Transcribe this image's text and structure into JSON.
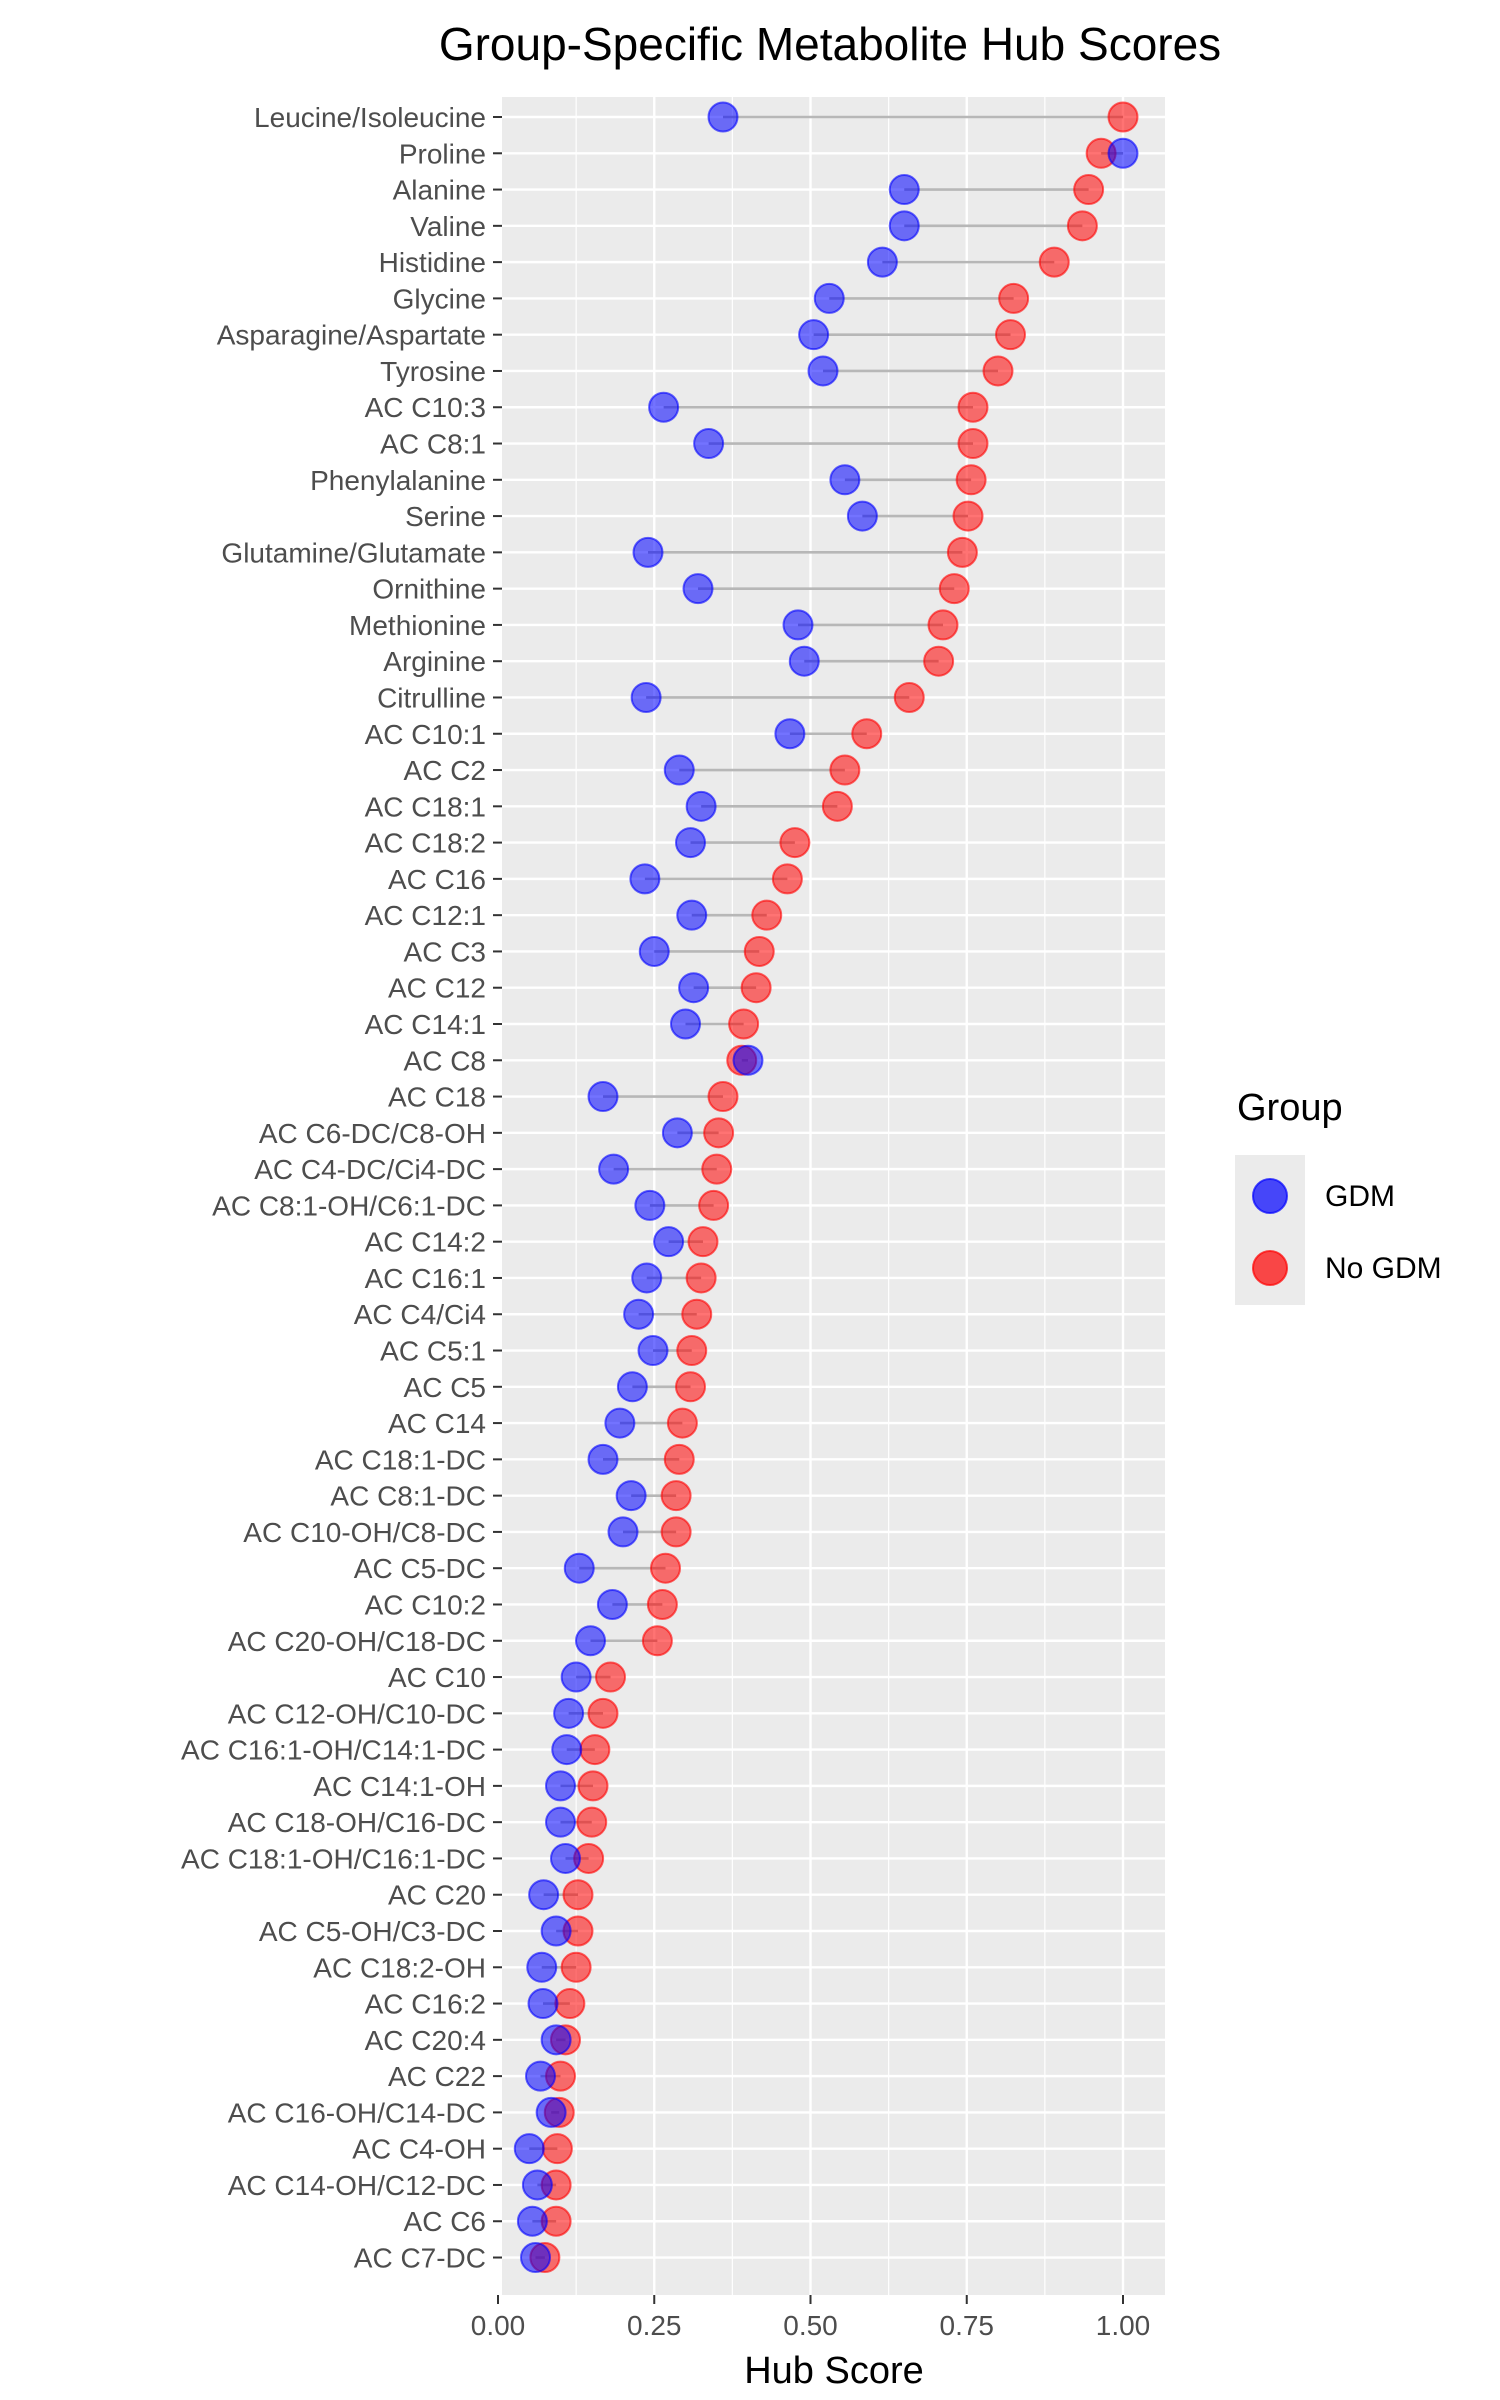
{
  "chart_data": {
    "type": "dot-dumbbell",
    "title": "Group-Specific Metabolite Hub Scores",
    "xlabel": "Hub Score",
    "ylabel": "",
    "xlim": [
      0,
      1.04
    ],
    "xticks": [
      0.0,
      0.25,
      0.5,
      0.75,
      1.0
    ],
    "xtick_labels": [
      "0.00",
      "0.25",
      "0.50",
      "0.75",
      "1.00"
    ],
    "grid": true,
    "legend": {
      "title": "Group",
      "position": "right",
      "entries": [
        {
          "name": "GDM",
          "color": "#0000ff"
        },
        {
          "name": "No GDM",
          "color": "#ff0000"
        }
      ]
    },
    "categories": [
      "Leucine/Isoleucine",
      "Proline",
      "Alanine",
      "Valine",
      "Histidine",
      "Glycine",
      "Asparagine/Aspartate",
      "Tyrosine",
      "AC C10:3",
      "AC C8:1",
      "Phenylalanine",
      "Serine",
      "Glutamine/Glutamate",
      "Ornithine",
      "Methionine",
      "Arginine",
      "Citrulline",
      "AC C10:1",
      "AC C2",
      "AC C18:1",
      "AC C18:2",
      "AC C16",
      "AC C12:1",
      "AC C3",
      "AC C12",
      "AC C14:1",
      "AC C8",
      "AC C18",
      "AC C6-DC/C8-OH",
      "AC C4-DC/Ci4-DC",
      "AC C8:1-OH/C6:1-DC",
      "AC C14:2",
      "AC C16:1",
      "AC C4/Ci4",
      "AC C5:1",
      "AC C5",
      "AC C14",
      "AC C18:1-DC",
      "AC C8:1-DC",
      "AC C10-OH/C8-DC",
      "AC C5-DC",
      "AC C10:2",
      "AC C20-OH/C18-DC",
      "AC C10",
      "AC C12-OH/C10-DC",
      "AC C16:1-OH/C14:1-DC",
      "AC C14:1-OH",
      "AC C18-OH/C16-DC",
      "AC C18:1-OH/C16:1-DC",
      "AC C20",
      "AC C5-OH/C3-DC",
      "AC C18:2-OH",
      "AC C16:2",
      "AC C20:4",
      "AC C22",
      "AC C16-OH/C14-DC",
      "AC C4-OH",
      "AC C14-OH/C12-DC",
      "AC C6",
      "AC C7-DC"
    ],
    "series": [
      {
        "name": "GDM",
        "color": "#0000ff",
        "values": [
          0.36,
          1.0,
          0.65,
          0.65,
          0.615,
          0.53,
          0.505,
          0.52,
          0.265,
          0.337,
          0.555,
          0.583,
          0.24,
          0.32,
          0.48,
          0.49,
          0.237,
          0.467,
          0.29,
          0.325,
          0.308,
          0.235,
          0.31,
          0.25,
          0.313,
          0.3,
          0.4,
          0.168,
          0.287,
          0.185,
          0.243,
          0.273,
          0.238,
          0.225,
          0.248,
          0.215,
          0.195,
          0.168,
          0.213,
          0.2,
          0.13,
          0.183,
          0.148,
          0.125,
          0.113,
          0.11,
          0.1,
          0.1,
          0.108,
          0.073,
          0.093,
          0.07,
          0.072,
          0.093,
          0.068,
          0.085,
          0.05,
          0.063,
          0.055,
          0.06
        ]
      },
      {
        "name": "No GDM",
        "color": "#ff0000",
        "values": [
          1.0,
          0.965,
          0.945,
          0.935,
          0.89,
          0.825,
          0.82,
          0.8,
          0.76,
          0.76,
          0.757,
          0.752,
          0.743,
          0.73,
          0.712,
          0.705,
          0.658,
          0.59,
          0.555,
          0.543,
          0.475,
          0.463,
          0.43,
          0.418,
          0.413,
          0.393,
          0.39,
          0.36,
          0.353,
          0.35,
          0.345,
          0.328,
          0.325,
          0.318,
          0.31,
          0.308,
          0.295,
          0.29,
          0.285,
          0.285,
          0.268,
          0.263,
          0.255,
          0.18,
          0.168,
          0.155,
          0.152,
          0.15,
          0.145,
          0.128,
          0.128,
          0.125,
          0.115,
          0.108,
          0.1,
          0.098,
          0.095,
          0.093,
          0.093,
          0.075
        ]
      }
    ]
  }
}
